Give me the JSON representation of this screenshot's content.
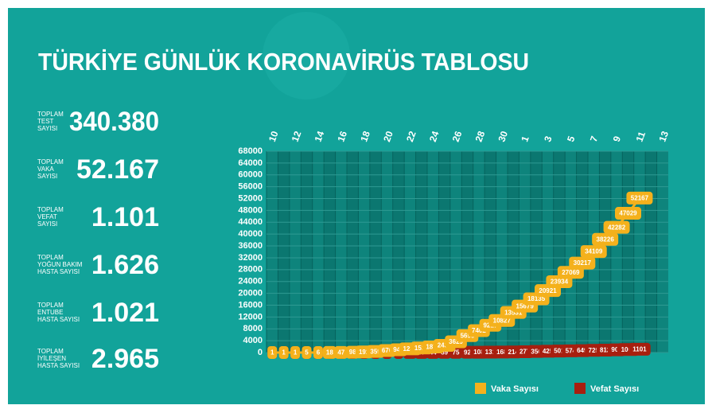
{
  "title": "TÜRKİYE GÜNLÜK KORONAVİRÜS TABLOSU",
  "stats": [
    {
      "label": [
        "TOPLAM",
        "TEST",
        "SAYISI"
      ],
      "value": "340.380"
    },
    {
      "label": [
        "TOPLAM",
        "VAKA",
        "SAYISI"
      ],
      "value": "52.167"
    },
    {
      "label": [
        "TOPLAM",
        "VEFAT",
        "SAYISI"
      ],
      "value": "1.101"
    },
    {
      "label": [
        "TOPLAM",
        "YOĞUN BAKIM",
        "HASTA SAYISI"
      ],
      "value": "1.626"
    },
    {
      "label": [
        "TOPLAM",
        "ENTUBE",
        "HASTA SAYISI"
      ],
      "value": "1.021"
    },
    {
      "label": [
        "TOPLAM",
        "İYİLEŞEN",
        "HASTA SAYISI"
      ],
      "value": "2.965"
    }
  ],
  "chart_data": {
    "type": "line",
    "categories": [
      "10",
      null,
      "12",
      null,
      "14",
      null,
      "16",
      null,
      "18",
      null,
      "20",
      null,
      "22",
      null,
      "24",
      null,
      "26",
      null,
      "28",
      null,
      "30",
      null,
      "1",
      null,
      "3",
      null,
      "5",
      null,
      "7",
      null,
      "9",
      null,
      "11",
      null,
      "13"
    ],
    "series": [
      {
        "name": "Vaka Sayısı",
        "color": "#f4b11c",
        "values": [
          1,
          1,
          1,
          5,
          6,
          18,
          47,
          98,
          191,
          359,
          670,
          947,
          1236,
          1529,
          1872,
          2433,
          3629,
          5698,
          7402,
          9217,
          10827,
          13531,
          15679,
          18135,
          20921,
          23934,
          27069,
          30217,
          34109,
          38226,
          42282,
          47029,
          52167,
          null,
          null
        ]
      },
      {
        "name": "Vefat Sayısı",
        "color": "#a71f0f",
        "values": [
          0,
          0,
          0,
          0,
          0,
          0,
          0,
          1,
          2,
          3,
          4,
          9,
          30,
          37,
          44,
          59,
          75,
          92,
          108,
          131,
          168,
          214,
          277,
          356,
          425,
          501,
          574,
          649,
          725,
          812,
          908,
          1006,
          1101,
          null,
          null
        ]
      }
    ],
    "ylim": [
      0,
      68000
    ],
    "yticks": [
      0,
      4000,
      8000,
      12000,
      16000,
      20000,
      24000,
      28000,
      32000,
      36000,
      40000,
      44000,
      48000,
      52000,
      56000,
      60000,
      64000,
      68000
    ],
    "grid": true
  }
}
